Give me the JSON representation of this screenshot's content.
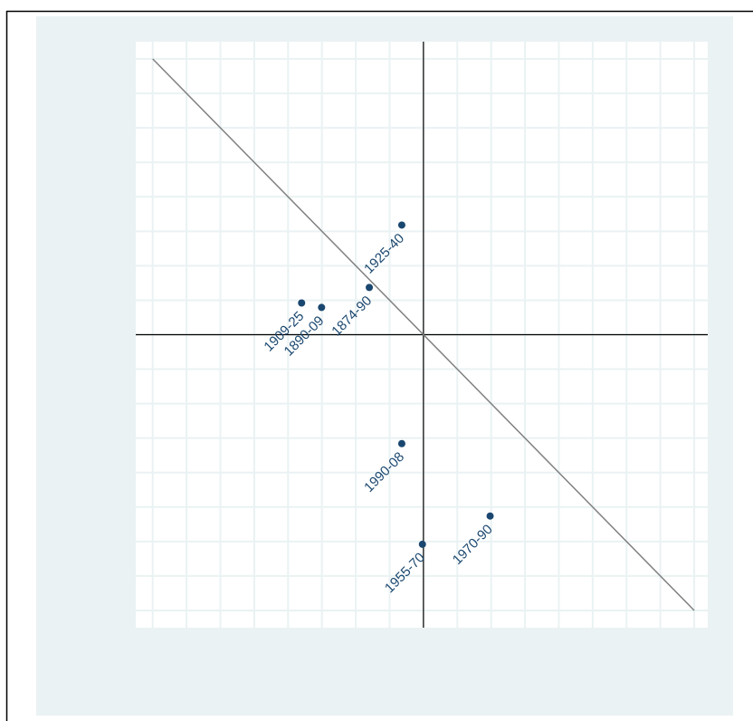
{
  "chart_data": {
    "type": "scatter",
    "labels": [
      "1925-40",
      "1874-90",
      "1909-25",
      "1890-09",
      "1990-08",
      "1955-70",
      "1970-90"
    ],
    "x": [
      -0.64,
      -1.6,
      -3.6,
      -3.01,
      -0.64,
      -0.03,
      1.97
    ],
    "y": [
      3.18,
      1.37,
      0.92,
      0.79,
      -3.16,
      -6.08,
      -5.26
    ],
    "color": "#1a476f",
    "xlim": [
      -8.5,
      8.4
    ],
    "ylim": [
      -8.5,
      8.5
    ],
    "xticks": [
      -8,
      -7,
      -6,
      -5,
      -4,
      -3,
      -2,
      -1,
      0,
      1,
      2,
      3,
      4,
      5,
      6,
      7,
      8
    ],
    "yticks": [
      -8,
      -7,
      -6,
      -5,
      -4,
      -3,
      -2,
      -1,
      0,
      1,
      2,
      3,
      4,
      5,
      6,
      7,
      8
    ],
    "grid": true,
    "reference_line": {
      "x": [
        -8,
        8
      ],
      "y": [
        8,
        -8
      ],
      "color": "#808080"
    }
  }
}
